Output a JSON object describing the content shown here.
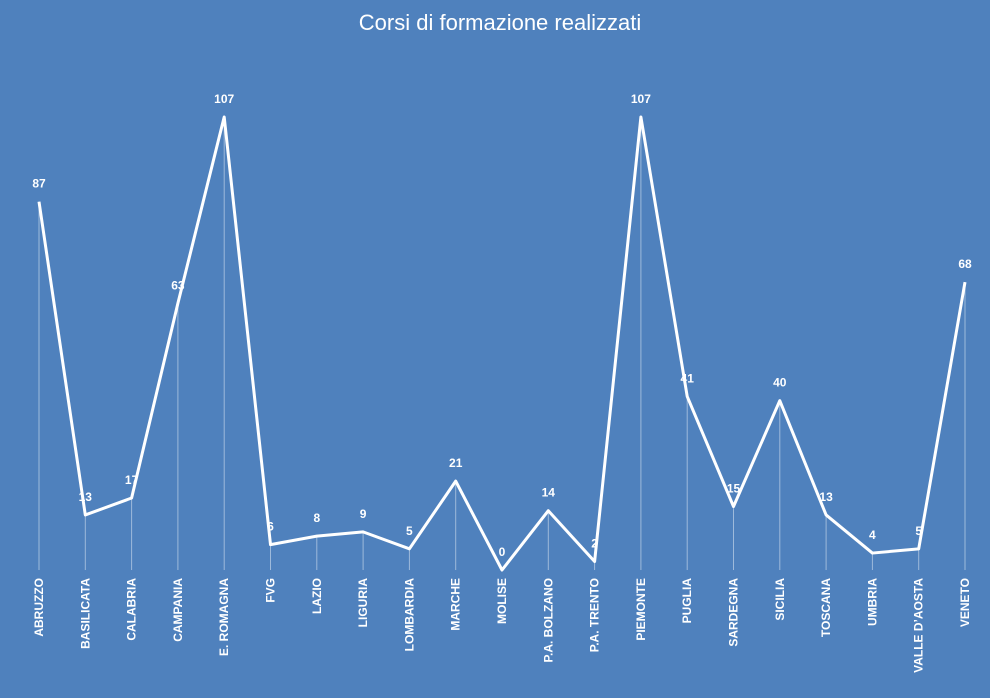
{
  "chart_data": {
    "type": "line",
    "title": "Corsi di formazione realizzati",
    "categories": [
      "ABRUZZO",
      "BASILICATA",
      "CALABRIA",
      "CAMPANIA",
      "E. ROMAGNA",
      "FVG",
      "LAZIO",
      "LIGURIA",
      "LOMBARDIA",
      "MARCHE",
      "MOLISE",
      "P.A. BOLZANO",
      "P.A. TRENTO",
      "PIEMONTE",
      "PUGLIA",
      "SARDEGNA",
      "SICILIA",
      "TOSCANA",
      "UMBRIA",
      "VALLE D’AOSTA",
      "VENETO"
    ],
    "values": [
      87,
      13,
      17,
      63,
      107,
      6,
      8,
      9,
      5,
      21,
      0,
      14,
      2,
      107,
      41,
      15,
      40,
      13,
      4,
      5,
      68
    ],
    "color": "#ffffff",
    "background": "#4f81bd",
    "drop_lines": true
  }
}
